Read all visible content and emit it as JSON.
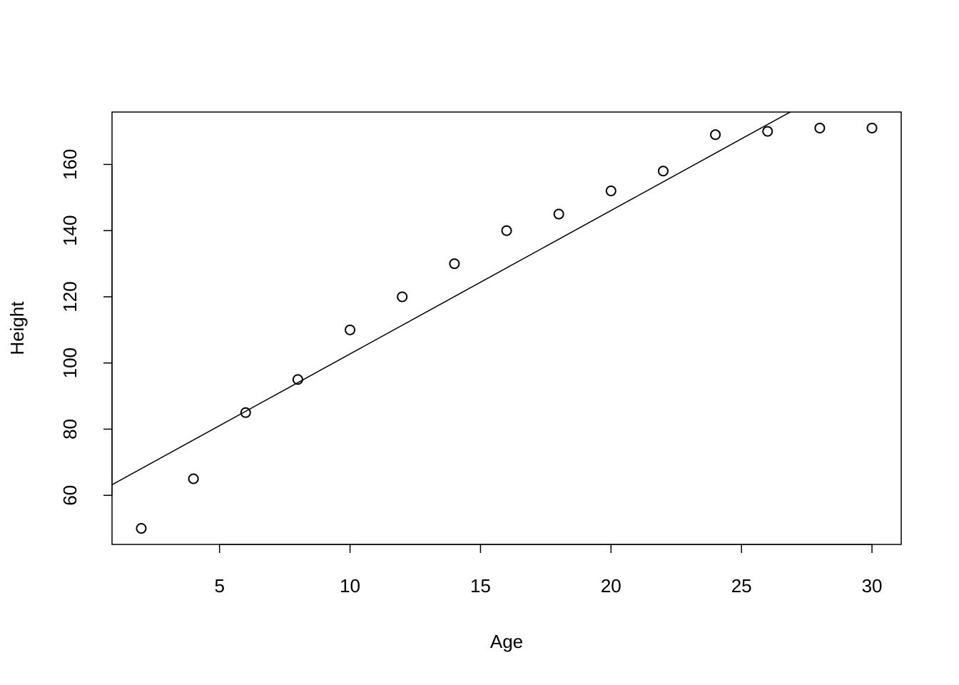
{
  "chart_data": {
    "type": "scatter",
    "xlabel": "Age",
    "ylabel": "Height",
    "x": [
      2,
      4,
      6,
      8,
      10,
      12,
      14,
      16,
      18,
      20,
      22,
      24,
      26,
      28,
      30
    ],
    "values": [
      50,
      65,
      85,
      95,
      110,
      120,
      130,
      140,
      145,
      152,
      158,
      169,
      170,
      171,
      171
    ],
    "color": "#000000",
    "fit_line": {
      "intercept": 59.39,
      "slope": 4.334
    },
    "xlim": [
      0.88,
      31.12
    ],
    "xticks": [
      5,
      10,
      15,
      20,
      25,
      30
    ],
    "ylim": [
      45.16,
      175.84
    ],
    "yticks": [
      60,
      80,
      100,
      120,
      140,
      160
    ],
    "grid": false
  }
}
